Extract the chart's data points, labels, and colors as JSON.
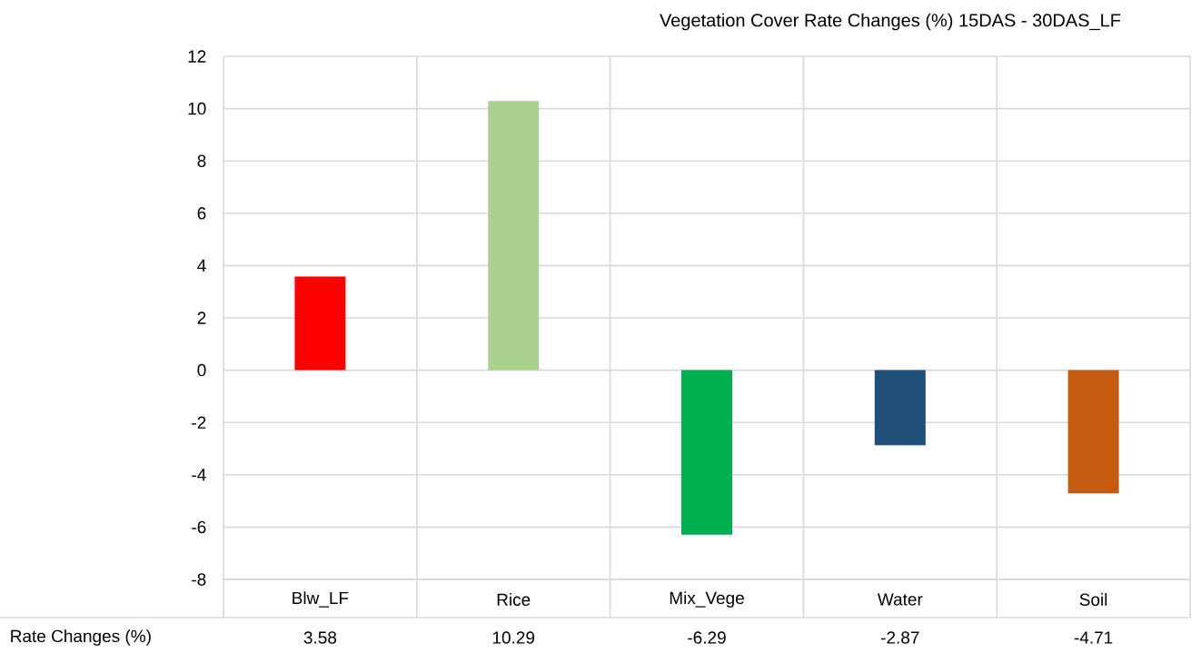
{
  "chart_data": {
    "type": "bar",
    "title": "Vegetation Cover Rate Changes (%) 15DAS - 30DAS_LF",
    "categories": [
      "Blw_LF",
      "Rice",
      "Mix_Vege",
      "Water",
      "Soil"
    ],
    "series": [
      {
        "name": "Rate Changes (%)",
        "colors": [
          "#ff0000",
          "#a9d18e",
          "#00b050",
          "#1f4e79",
          "#c55a11"
        ],
        "values": [
          3.58,
          10.29,
          -6.29,
          -2.87,
          -4.71
        ]
      }
    ],
    "ylim": [
      -8,
      12
    ],
    "yticks": [
      -8,
      -6,
      -4,
      -2,
      0,
      2,
      4,
      6,
      8,
      10,
      12
    ],
    "grid": true,
    "data_labels": true
  }
}
